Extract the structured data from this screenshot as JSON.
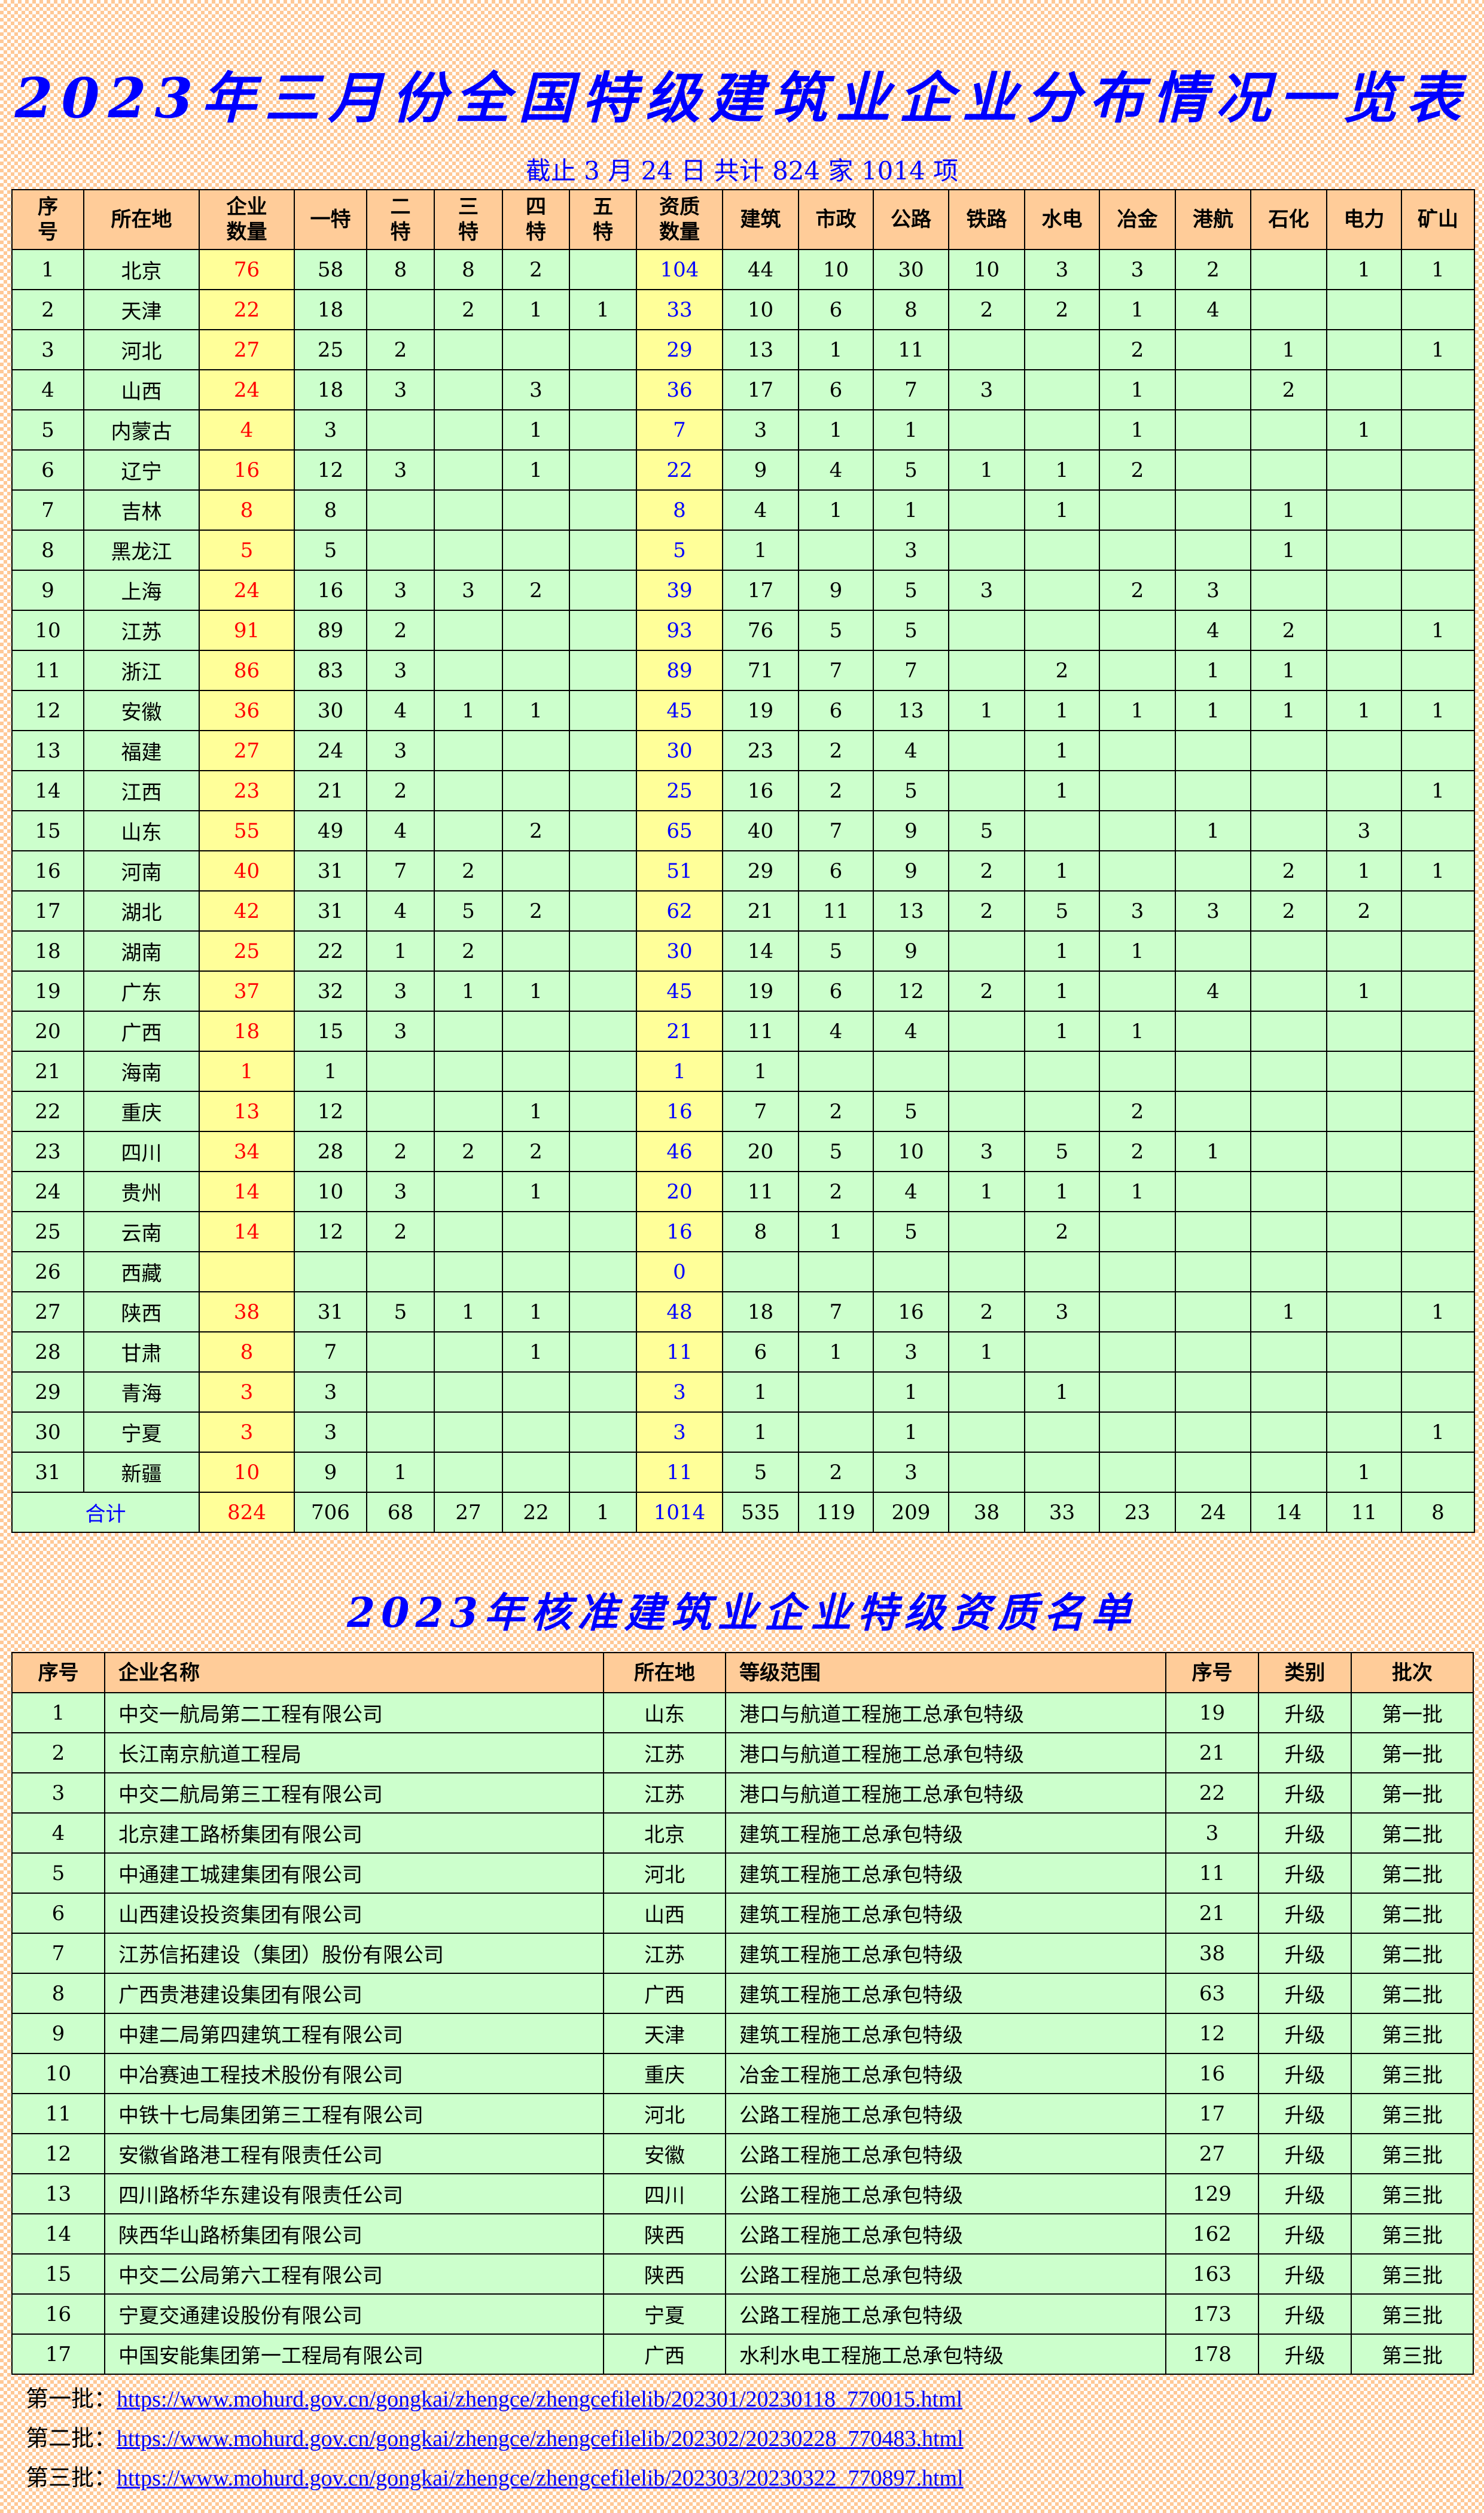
{
  "title": "2023年三月份全国特级建筑业企业分布情况一览表",
  "subtitle": "截止 3 月 24 日  共计 824 家 1014 项",
  "colors": {
    "header_bg": "#FFCC99",
    "row_bg": "#CCFFCC",
    "highlight_bg": "#FFFF99",
    "enterprise_count": "#FF0000",
    "qualification_count": "#0000FF",
    "title": "#0000FF"
  },
  "distribution": {
    "headers": [
      "序\n号",
      "所在地",
      "企业\n数量",
      "一特",
      "二\n特",
      "三\n特",
      "四\n特",
      "五\n特",
      "资质\n数量",
      "建筑",
      "市政",
      "公路",
      "铁路",
      "水电",
      "冶金",
      "港航",
      "石化",
      "电力",
      "矿山"
    ],
    "rows": [
      [
        "1",
        "北京",
        "76",
        "58",
        "8",
        "8",
        "2",
        "",
        "104",
        "44",
        "10",
        "30",
        "10",
        "3",
        "3",
        "2",
        "",
        "1",
        "1"
      ],
      [
        "2",
        "天津",
        "22",
        "18",
        "",
        "2",
        "1",
        "1",
        "33",
        "10",
        "6",
        "8",
        "2",
        "2",
        "1",
        "4",
        "",
        "",
        ""
      ],
      [
        "3",
        "河北",
        "27",
        "25",
        "2",
        "",
        "",
        "",
        "29",
        "13",
        "1",
        "11",
        "",
        "",
        "2",
        "",
        "1",
        "",
        "1"
      ],
      [
        "4",
        "山西",
        "24",
        "18",
        "3",
        "",
        "3",
        "",
        "36",
        "17",
        "6",
        "7",
        "3",
        "",
        "1",
        "",
        "2",
        "",
        ""
      ],
      [
        "5",
        "内蒙古",
        "4",
        "3",
        "",
        "",
        "1",
        "",
        "7",
        "3",
        "1",
        "1",
        "",
        "",
        "1",
        "",
        "",
        "1",
        ""
      ],
      [
        "6",
        "辽宁",
        "16",
        "12",
        "3",
        "",
        "1",
        "",
        "22",
        "9",
        "4",
        "5",
        "1",
        "1",
        "2",
        "",
        "",
        "",
        ""
      ],
      [
        "7",
        "吉林",
        "8",
        "8",
        "",
        "",
        "",
        "",
        "8",
        "4",
        "1",
        "1",
        "",
        "1",
        "",
        "",
        "1",
        "",
        ""
      ],
      [
        "8",
        "黑龙江",
        "5",
        "5",
        "",
        "",
        "",
        "",
        "5",
        "1",
        "",
        "3",
        "",
        "",
        "",
        "",
        "1",
        "",
        ""
      ],
      [
        "9",
        "上海",
        "24",
        "16",
        "3",
        "3",
        "2",
        "",
        "39",
        "17",
        "9",
        "5",
        "3",
        "",
        "2",
        "3",
        "",
        "",
        ""
      ],
      [
        "10",
        "江苏",
        "91",
        "89",
        "2",
        "",
        "",
        "",
        "93",
        "76",
        "5",
        "5",
        "",
        "",
        "",
        "4",
        "2",
        "",
        "1"
      ],
      [
        "11",
        "浙江",
        "86",
        "83",
        "3",
        "",
        "",
        "",
        "89",
        "71",
        "7",
        "7",
        "",
        "2",
        "",
        "1",
        "1",
        "",
        ""
      ],
      [
        "12",
        "安徽",
        "36",
        "30",
        "4",
        "1",
        "1",
        "",
        "45",
        "19",
        "6",
        "13",
        "1",
        "1",
        "1",
        "1",
        "1",
        "1",
        "1"
      ],
      [
        "13",
        "福建",
        "27",
        "24",
        "3",
        "",
        "",
        "",
        "30",
        "23",
        "2",
        "4",
        "",
        "1",
        "",
        "",
        "",
        "",
        ""
      ],
      [
        "14",
        "江西",
        "23",
        "21",
        "2",
        "",
        "",
        "",
        "25",
        "16",
        "2",
        "5",
        "",
        "1",
        "",
        "",
        "",
        "",
        "1"
      ],
      [
        "15",
        "山东",
        "55",
        "49",
        "4",
        "",
        "2",
        "",
        "65",
        "40",
        "7",
        "9",
        "5",
        "",
        "",
        "1",
        "",
        "3",
        ""
      ],
      [
        "16",
        "河南",
        "40",
        "31",
        "7",
        "2",
        "",
        "",
        "51",
        "29",
        "6",
        "9",
        "2",
        "1",
        "",
        "",
        "2",
        "1",
        "1"
      ],
      [
        "17",
        "湖北",
        "42",
        "31",
        "4",
        "5",
        "2",
        "",
        "62",
        "21",
        "11",
        "13",
        "2",
        "5",
        "3",
        "3",
        "2",
        "2",
        ""
      ],
      [
        "18",
        "湖南",
        "25",
        "22",
        "1",
        "2",
        "",
        "",
        "30",
        "14",
        "5",
        "9",
        "",
        "1",
        "1",
        "",
        "",
        "",
        ""
      ],
      [
        "19",
        "广东",
        "37",
        "32",
        "3",
        "1",
        "1",
        "",
        "45",
        "19",
        "6",
        "12",
        "2",
        "1",
        "",
        "4",
        "",
        "1",
        ""
      ],
      [
        "20",
        "广西",
        "18",
        "15",
        "3",
        "",
        "",
        "",
        "21",
        "11",
        "4",
        "4",
        "",
        "1",
        "1",
        "",
        "",
        "",
        ""
      ],
      [
        "21",
        "海南",
        "1",
        "1",
        "",
        "",
        "",
        "",
        "1",
        "1",
        "",
        "",
        "",
        "",
        "",
        "",
        "",
        "",
        ""
      ],
      [
        "22",
        "重庆",
        "13",
        "12",
        "",
        "",
        "1",
        "",
        "16",
        "7",
        "2",
        "5",
        "",
        "",
        "2",
        "",
        "",
        "",
        ""
      ],
      [
        "23",
        "四川",
        "34",
        "28",
        "2",
        "2",
        "2",
        "",
        "46",
        "20",
        "5",
        "10",
        "3",
        "5",
        "2",
        "1",
        "",
        "",
        ""
      ],
      [
        "24",
        "贵州",
        "14",
        "10",
        "3",
        "",
        "1",
        "",
        "20",
        "11",
        "2",
        "4",
        "1",
        "1",
        "1",
        "",
        "",
        "",
        ""
      ],
      [
        "25",
        "云南",
        "14",
        "12",
        "2",
        "",
        "",
        "",
        "16",
        "8",
        "1",
        "5",
        "",
        "2",
        "",
        "",
        "",
        "",
        ""
      ],
      [
        "26",
        "西藏",
        "",
        "",
        "",
        "",
        "",
        "",
        "0",
        "",
        "",
        "",
        "",
        "",
        "",
        "",
        "",
        "",
        ""
      ],
      [
        "27",
        "陕西",
        "38",
        "31",
        "5",
        "1",
        "1",
        "",
        "48",
        "18",
        "7",
        "16",
        "2",
        "3",
        "",
        "",
        "1",
        "",
        "1"
      ],
      [
        "28",
        "甘肃",
        "8",
        "7",
        "",
        "",
        "1",
        "",
        "11",
        "6",
        "1",
        "3",
        "1",
        "",
        "",
        "",
        "",
        "",
        ""
      ],
      [
        "29",
        "青海",
        "3",
        "3",
        "",
        "",
        "",
        "",
        "3",
        "1",
        "",
        "1",
        "",
        "1",
        "",
        "",
        "",
        "",
        ""
      ],
      [
        "30",
        "宁夏",
        "3",
        "3",
        "",
        "",
        "",
        "",
        "3",
        "1",
        "",
        "1",
        "",
        "",
        "",
        "",
        "",
        "",
        "1"
      ],
      [
        "31",
        "新疆",
        "10",
        "9",
        "1",
        "",
        "",
        "",
        "11",
        "5",
        "2",
        "3",
        "",
        "",
        "",
        "",
        "",
        "1",
        ""
      ]
    ],
    "total": {
      "label": "合计",
      "values": [
        "824",
        "706",
        "68",
        "27",
        "22",
        "1",
        "1014",
        "535",
        "119",
        "209",
        "38",
        "33",
        "23",
        "24",
        "14",
        "11",
        "8"
      ]
    }
  },
  "title2": "2023年核准建筑业企业特级资质名单",
  "approved": {
    "headers": [
      "序号",
      "企业名称",
      "所在地",
      "等级范围",
      "序号",
      "类别",
      "批次"
    ],
    "rows": [
      [
        "1",
        "中交一航局第二工程有限公司",
        "山东",
        "港口与航道工程施工总承包特级",
        "19",
        "升级",
        "第一批"
      ],
      [
        "2",
        "长江南京航道工程局",
        "江苏",
        "港口与航道工程施工总承包特级",
        "21",
        "升级",
        "第一批"
      ],
      [
        "3",
        "中交二航局第三工程有限公司",
        "江苏",
        "港口与航道工程施工总承包特级",
        "22",
        "升级",
        "第一批"
      ],
      [
        "4",
        "北京建工路桥集团有限公司",
        "北京",
        "建筑工程施工总承包特级",
        "3",
        "升级",
        "第二批"
      ],
      [
        "5",
        "中通建工城建集团有限公司",
        "河北",
        "建筑工程施工总承包特级",
        "11",
        "升级",
        "第二批"
      ],
      [
        "6",
        "山西建设投资集团有限公司",
        "山西",
        "建筑工程施工总承包特级",
        "21",
        "升级",
        "第二批"
      ],
      [
        "7",
        "江苏信拓建设（集团）股份有限公司",
        "江苏",
        "建筑工程施工总承包特级",
        "38",
        "升级",
        "第二批"
      ],
      [
        "8",
        "广西贵港建设集团有限公司",
        "广西",
        "建筑工程施工总承包特级",
        "63",
        "升级",
        "第二批"
      ],
      [
        "9",
        "中建二局第四建筑工程有限公司",
        "天津",
        "建筑工程施工总承包特级",
        "12",
        "升级",
        "第三批"
      ],
      [
        "10",
        "中冶赛迪工程技术股份有限公司",
        "重庆",
        "冶金工程施工总承包特级",
        "16",
        "升级",
        "第三批"
      ],
      [
        "11",
        "中铁十七局集团第三工程有限公司",
        "河北",
        "公路工程施工总承包特级",
        "17",
        "升级",
        "第三批"
      ],
      [
        "12",
        "安徽省路港工程有限责任公司",
        "安徽",
        "公路工程施工总承包特级",
        "27",
        "升级",
        "第三批"
      ],
      [
        "13",
        "四川路桥华东建设有限责任公司",
        "四川",
        "公路工程施工总承包特级",
        "129",
        "升级",
        "第三批"
      ],
      [
        "14",
        "陕西华山路桥集团有限公司",
        "陕西",
        "公路工程施工总承包特级",
        "162",
        "升级",
        "第三批"
      ],
      [
        "15",
        "中交二公局第六工程有限公司",
        "陕西",
        "公路工程施工总承包特级",
        "163",
        "升级",
        "第三批"
      ],
      [
        "16",
        "宁夏交通建设股份有限公司",
        "宁夏",
        "公路工程施工总承包特级",
        "173",
        "升级",
        "第三批"
      ],
      [
        "17",
        "中国安能集团第一工程局有限公司",
        "广西",
        "水利水电工程施工总承包特级",
        "178",
        "升级",
        "第三批"
      ]
    ]
  },
  "links": [
    {
      "label": "第一批：",
      "url": "https://www.mohurd.gov.cn/gongkai/zhengce/zhengcefilelib/202301/20230118_770015.html"
    },
    {
      "label": "第二批：",
      "url": "https://www.mohurd.gov.cn/gongkai/zhengce/zhengcefilelib/202302/20230228_770483.html"
    },
    {
      "label": "第三批：",
      "url": "https://www.mohurd.gov.cn/gongkai/zhengce/zhengcefilelib/202303/20230322_770897.html"
    }
  ]
}
